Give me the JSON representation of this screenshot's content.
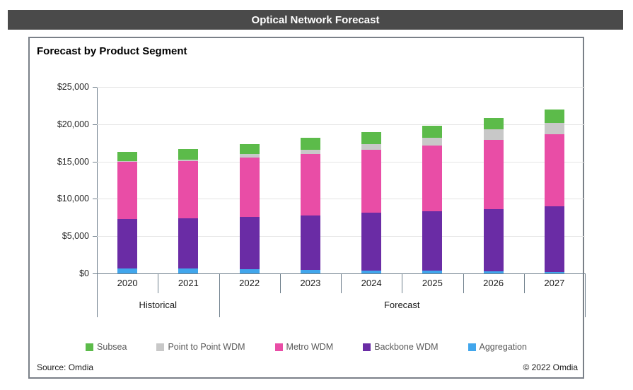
{
  "header": {
    "title": "Optical Network Forecast"
  },
  "chart": {
    "title": "Forecast by Product Segment"
  },
  "footer": {
    "source": "Source: Omdia",
    "copyright": "© 2022 Omdia"
  },
  "colors": {
    "titlebar_bg": "#4A4A4A",
    "panel_border": "#7A8088",
    "axis_line": "#70808D",
    "gridline": "#E4E4E4",
    "subsea_green": "#5CBB4A",
    "point_to_point_gray": "#C8C8C8",
    "metro_pink": "#E94DA6",
    "backbone_purple": "#6A2CA5",
    "aggregation_blue": "#41A6EC"
  },
  "chart_data": {
    "type": "bar",
    "stacked": true,
    "title": "Forecast by Product Segment",
    "xlabel": "",
    "ylabel": "",
    "grid": true,
    "legend_position": "bottom",
    "categories": [
      "2020",
      "2021",
      "2022",
      "2023",
      "2024",
      "2025",
      "2026",
      "2027"
    ],
    "category_groups": [
      {
        "label": "Historical",
        "span": 2
      },
      {
        "label": "Forecast",
        "span": 6
      }
    ],
    "series": [
      {
        "name": "Aggregation",
        "color": "#41A6EC",
        "values": [
          700,
          700,
          600,
          500,
          400,
          350,
          300,
          200
        ]
      },
      {
        "name": "Backbone WDM",
        "color": "#6A2CA5",
        "values": [
          6600,
          6700,
          7000,
          7300,
          7700,
          8000,
          8300,
          8800
        ]
      },
      {
        "name": "Metro WDM",
        "color": "#E94DA6",
        "values": [
          7700,
          7650,
          7900,
          8200,
          8450,
          8800,
          9300,
          9650
        ]
      },
      {
        "name": "Point to Point WDM",
        "color": "#C8C8C8",
        "values": [
          100,
          200,
          500,
          550,
          750,
          1050,
          1400,
          1550
        ]
      },
      {
        "name": "Subsea",
        "color": "#5CBB4A",
        "values": [
          1200,
          1400,
          1300,
          1600,
          1600,
          1600,
          1500,
          1750
        ]
      }
    ],
    "totals": [
      16300,
      16650,
      17300,
      18150,
      18900,
      19800,
      20800,
      21950
    ],
    "legend": [
      {
        "label": "Subsea",
        "color": "#5CBB4A"
      },
      {
        "label": "Point to Point WDM",
        "color": "#C8C8C8"
      },
      {
        "label": "Metro WDM",
        "color": "#E94DA6"
      },
      {
        "label": "Backbone WDM",
        "color": "#6A2CA5"
      },
      {
        "label": "Aggregation",
        "color": "#41A6EC"
      }
    ],
    "y_axis": {
      "min": 0,
      "max": 25000,
      "step": 5000,
      "tick_labels": [
        "$0",
        "$5,000",
        "$10,000",
        "$15,000",
        "$20,000",
        "$25,000"
      ]
    }
  }
}
